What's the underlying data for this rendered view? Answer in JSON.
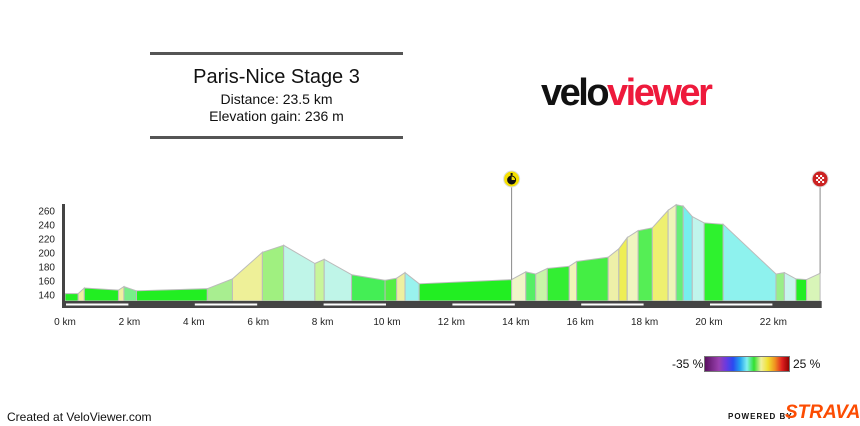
{
  "header": {
    "title": "Paris-Nice Stage 3",
    "distance": "Distance: 23.5 km",
    "elevation_gain": "Elevation gain: 236 m"
  },
  "logo": {
    "part1": "velo",
    "part2": "viewer",
    "accent": "#ee1a3c"
  },
  "chart_data": {
    "type": "area",
    "xlabel": "",
    "ylabel": "",
    "x_unit": "km",
    "xlim": [
      0,
      23.5
    ],
    "ylim": [
      130,
      270
    ],
    "x_ticks": [
      0,
      2,
      4,
      6,
      8,
      10,
      12,
      14,
      16,
      18,
      20,
      22
    ],
    "x_tick_labels": [
      "0 km",
      "2 km",
      "4 km",
      "6 km",
      "8 km",
      "10 km",
      "12 km",
      "14 km",
      "16 km",
      "18 km",
      "20 km",
      "22 km"
    ],
    "y_ticks": [
      140,
      160,
      180,
      200,
      220,
      240,
      260
    ],
    "y_tick_labels": [
      "140",
      "160",
      "180",
      "200",
      "220",
      "240",
      "260"
    ],
    "grid": false,
    "points": [
      [
        0,
        142
      ],
      [
        0.41,
        142
      ],
      [
        0.6,
        150
      ],
      [
        1.66,
        147
      ],
      [
        1.83,
        152
      ],
      [
        2.22,
        146
      ],
      [
        4.42,
        149
      ],
      [
        5.2,
        163
      ],
      [
        6.13,
        201
      ],
      [
        6.79,
        211
      ],
      [
        7.76,
        185
      ],
      [
        8.05,
        191
      ],
      [
        8.9,
        169
      ],
      [
        9.94,
        161
      ],
      [
        10.3,
        164
      ],
      [
        10.56,
        172
      ],
      [
        11.0,
        156
      ],
      [
        13.87,
        162
      ],
      [
        14.31,
        173
      ],
      [
        14.62,
        170
      ],
      [
        14.98,
        178
      ],
      [
        15.66,
        181
      ],
      [
        15.89,
        188
      ],
      [
        16.87,
        194
      ],
      [
        17.2,
        206
      ],
      [
        17.46,
        222
      ],
      [
        17.8,
        232
      ],
      [
        18.24,
        236
      ],
      [
        18.73,
        261
      ],
      [
        18.98,
        269
      ],
      [
        19.2,
        267
      ],
      [
        19.48,
        252
      ],
      [
        19.85,
        243
      ],
      [
        20.44,
        241
      ],
      [
        22.08,
        170
      ],
      [
        22.34,
        172
      ],
      [
        22.7,
        163
      ],
      [
        23.03,
        162
      ],
      [
        23.45,
        171
      ]
    ],
    "segment_colors": [
      "#22ee22",
      "#eef0a0",
      "#22ee22",
      "#eef0a0",
      "#77ee88",
      "#22ee22",
      "#a8ee90",
      "#eef098",
      "#a0f080",
      "#bff5e8",
      "#c8f59a",
      "#bff5e8",
      "#44ee55",
      "#55ee44",
      "#eef0a0",
      "#99f2ee",
      "#22ee22",
      "#f0f5c8",
      "#55ee66",
      "#c8f5a8",
      "#33ee33",
      "#f0f5b8",
      "#44ee44",
      "#eef0a8",
      "#eeee55",
      "#f0f5c0",
      "#55ee55",
      "#eef070",
      "#eef5b8",
      "#66ee77",
      "#77eeee",
      "#c0f5ec",
      "#2ef22e",
      "#8ef2ee",
      "#99ee88",
      "#c8f5ee",
      "#22ee22",
      "#d8f5b8"
    ],
    "markers": [
      {
        "km": 13.87,
        "icon": "stopwatch-icon",
        "color": "#f5e000"
      },
      {
        "km": 23.45,
        "icon": "checkered-flag-icon",
        "color": "#cc2222"
      }
    ]
  },
  "legend": {
    "min_label": "-35 %",
    "max_label": "25 %"
  },
  "footer": {
    "credit": "Created at VeloViewer.com",
    "powered_by": "POWERED BY",
    "strava": "STRAVA",
    "strava_color": "#fc4c02"
  }
}
